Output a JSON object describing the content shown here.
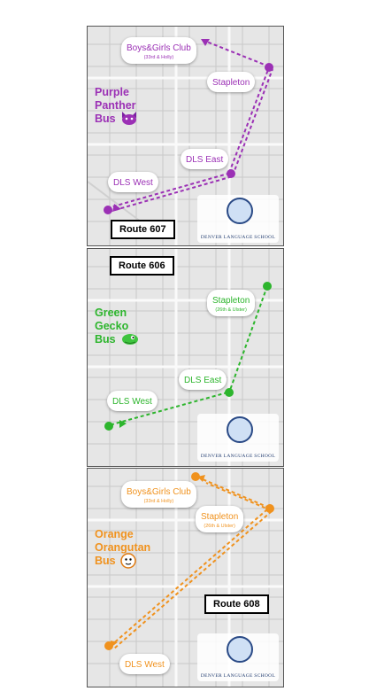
{
  "routes": [
    {
      "route_label": "Route 607",
      "bus_line1": "Purple",
      "bus_line2": "Panther",
      "bus_line3": "Bus",
      "mascot_icon": "cat-face-icon",
      "color": "#9b30b5",
      "stops": {
        "boys_girls_club": {
          "name": "Boys&Girls Club",
          "sub": "(33rd & Holly)"
        },
        "stapleton": {
          "name": "Stapleton",
          "sub": ""
        },
        "dls_east": {
          "name": "DLS East",
          "sub": ""
        },
        "dls_west": {
          "name": "DLS West",
          "sub": ""
        }
      },
      "school_name": "DENVER LANGUAGE SCHOOL"
    },
    {
      "route_label": "Route 606",
      "bus_line1": "Green",
      "bus_line2": "Gecko",
      "bus_line3": "Bus",
      "mascot_icon": "gecko-icon",
      "color": "#2db52d",
      "stops": {
        "stapleton": {
          "name": "Stapleton",
          "sub": "(26th & Ulster)"
        },
        "dls_east": {
          "name": "DLS East",
          "sub": ""
        },
        "dls_west": {
          "name": "DLS West",
          "sub": ""
        }
      },
      "school_name": "DENVER LANGUAGE SCHOOL"
    },
    {
      "route_label": "Route 608",
      "bus_line1": "Orange",
      "bus_line2": "Orangutan",
      "bus_line3": "Bus",
      "mascot_icon": "monkey-face-icon",
      "color": "#f0921e",
      "stops": {
        "boys_girls_club": {
          "name": "Boys&Girls Club",
          "sub": "(33rd & Holly)"
        },
        "stapleton": {
          "name": "Stapleton",
          "sub": "(26th & Ulster)"
        },
        "dls_west": {
          "name": "DLS West",
          "sub": ""
        }
      },
      "school_name": "DENVER LANGUAGE SCHOOL"
    }
  ]
}
